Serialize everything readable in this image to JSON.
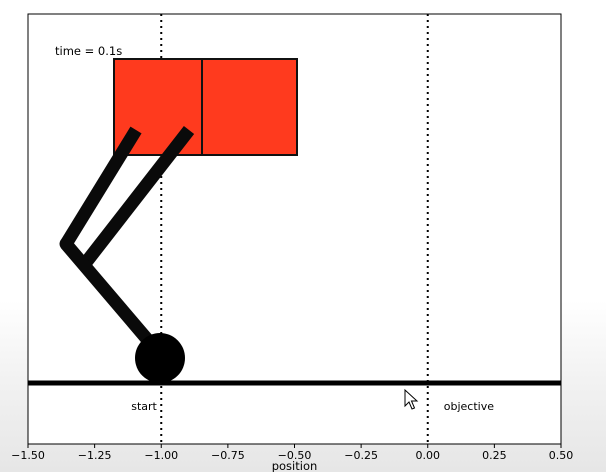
{
  "chart_data": {
    "type": "scatter",
    "title": "",
    "time_label": "time = 0.1s",
    "xlabel": "position",
    "xlim": [
      -1.5,
      0.5
    ],
    "x_ticks": [
      -1.5,
      -1.25,
      -1.0,
      -0.75,
      -0.5,
      -0.25,
      0.0,
      0.25,
      0.5
    ],
    "x_tick_labels": [
      "−1.50",
      "−1.25",
      "−1.00",
      "−0.75",
      "−0.50",
      "−0.25",
      "0.00",
      "0.25",
      "0.50"
    ],
    "markers": [
      {
        "label": "start",
        "x": -1.0
      },
      {
        "label": "objective",
        "x": 0.0
      }
    ],
    "ground_color": "#000000",
    "body_color": "#ff3a1e",
    "grid": false
  }
}
